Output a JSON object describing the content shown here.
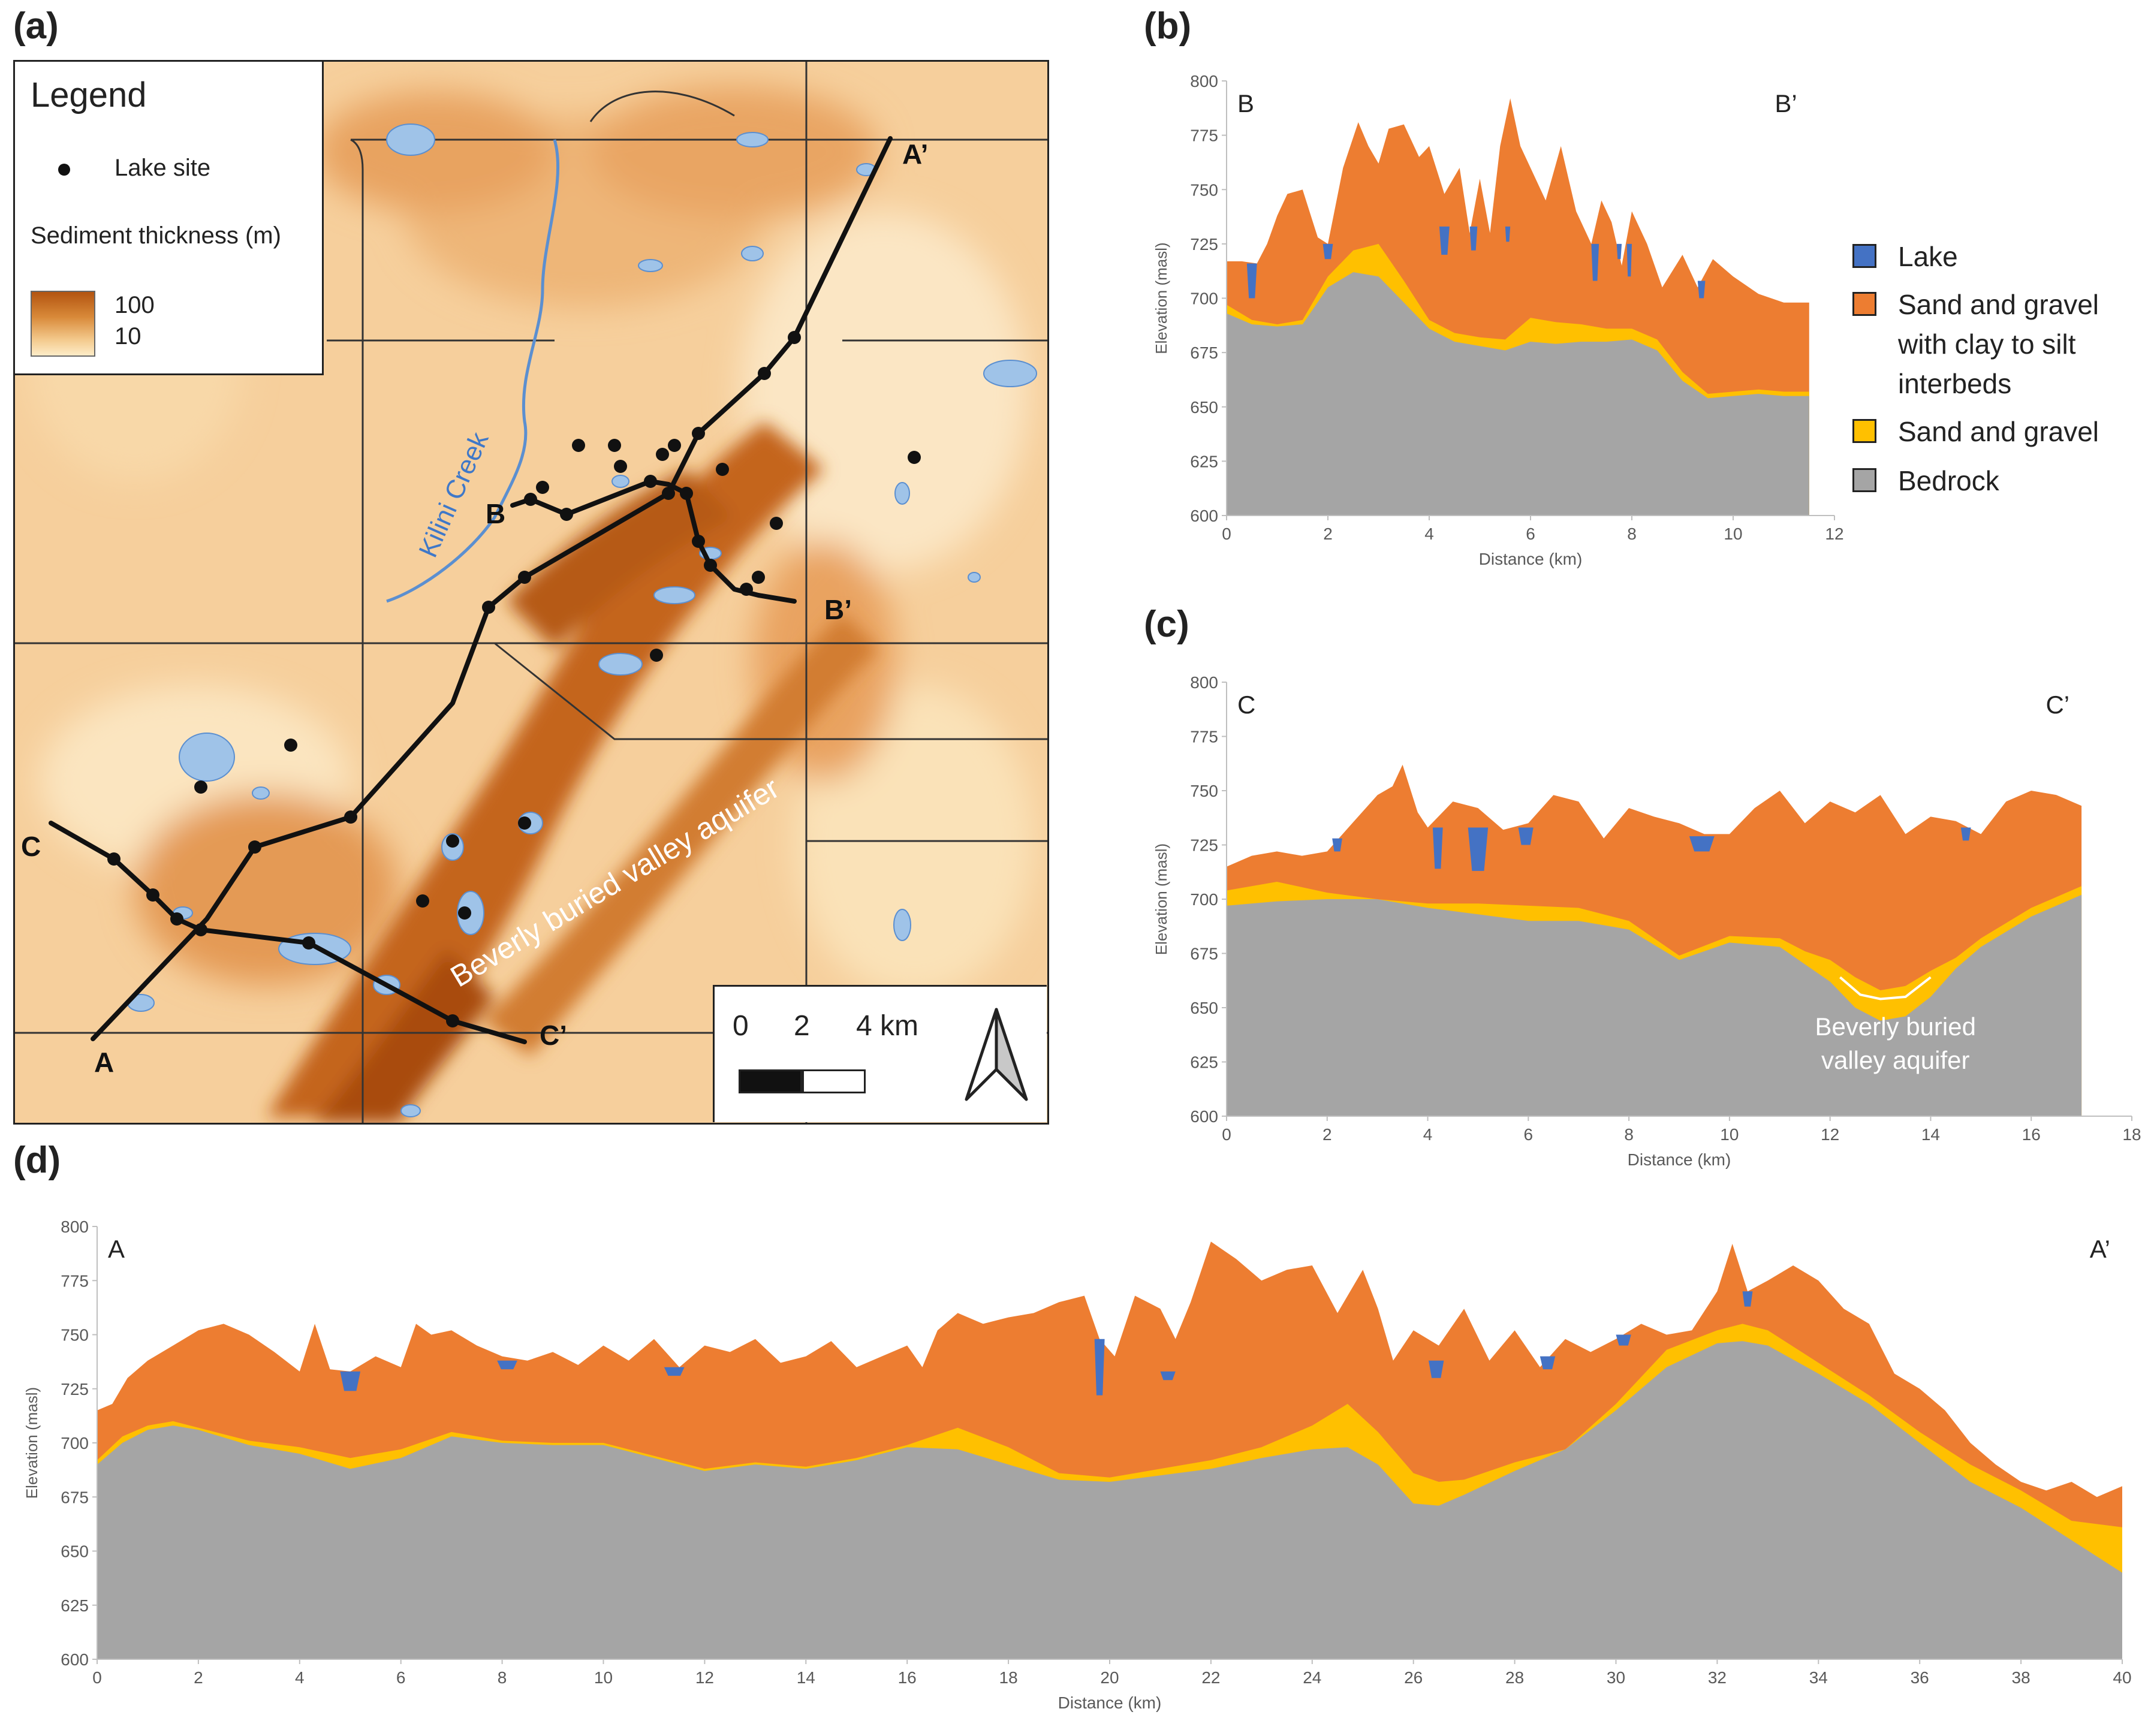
{
  "panels": {
    "a": "(a)",
    "b": "(b)",
    "c": "(c)",
    "d": "(d)"
  },
  "map": {
    "legend": {
      "title": "Legend",
      "lake_site": "Lake site",
      "sediment_thickness": "Sediment thickness (m)",
      "high": "100",
      "low": "10"
    },
    "scale": {
      "ticks": [
        "0",
        "2",
        "4 km"
      ],
      "icon": "north-arrow-icon"
    },
    "labels": {
      "creek": "Kilini Creek",
      "aquifer": "Beverly buried valley aquifer",
      "A": "A",
      "A_prime": "A’",
      "B": "B",
      "B_prime": "B’",
      "C": "C",
      "C_prime": "C’"
    },
    "colors": {
      "high": "#b35410",
      "mid": "#e39a4a",
      "low": "#fcefd2",
      "water": "#9fc3e8",
      "water_edge": "#5b8fd0"
    }
  },
  "chart_legend": {
    "items": [
      {
        "label": "Lake",
        "color": "#4472c4"
      },
      {
        "label": "Sand and gravel with clay to silt interbeds",
        "label_lines": [
          "Sand and gravel",
          "with clay to silt",
          "interbeds"
        ],
        "color": "#ed7d31"
      },
      {
        "label": "Sand and gravel",
        "color": "#ffc000"
      },
      {
        "label": "Bedrock",
        "color": "#a5a5a5"
      }
    ]
  },
  "chart_data": [
    {
      "id": "b",
      "type": "area",
      "title": "",
      "start_label": "B",
      "end_label": "B’",
      "xlabel": "Distance (km)",
      "ylabel": "Elevation (masl)",
      "xlim": [
        0,
        12
      ],
      "ylim": [
        600,
        800
      ],
      "xticks": [
        0,
        2,
        4,
        6,
        8,
        10,
        12
      ],
      "yticks": [
        600,
        625,
        650,
        675,
        700,
        725,
        750,
        775,
        800
      ],
      "x_max": 11.5,
      "series": [
        {
          "name": "Bedrock",
          "x": [
            0,
            0.5,
            1,
            1.5,
            2,
            2.5,
            3,
            3.5,
            4,
            4.5,
            5,
            5.5,
            6,
            6.5,
            7,
            7.5,
            8,
            8.5,
            9,
            9.5,
            10,
            10.5,
            11,
            11.5
          ],
          "values": [
            693,
            688,
            687,
            688,
            705,
            712,
            710,
            698,
            686,
            680,
            678,
            676,
            680,
            679,
            680,
            680,
            681,
            676,
            662,
            654,
            655,
            656,
            655,
            655
          ]
        },
        {
          "name": "Sand and gravel",
          "x": [
            0,
            0.5,
            1,
            1.5,
            2,
            2.5,
            3,
            3.5,
            4,
            4.5,
            5,
            5.5,
            6,
            6.5,
            7,
            7.5,
            8,
            8.5,
            9,
            9.5,
            10,
            10.5,
            11,
            11.5
          ],
          "values": [
            697,
            690,
            688,
            690,
            710,
            722,
            725,
            708,
            690,
            684,
            682,
            681,
            691,
            689,
            688,
            686,
            686,
            681,
            666,
            656,
            657,
            658,
            657,
            657
          ]
        },
        {
          "name": "Sand and gravel with clay to silt interbeds",
          "x": [
            0,
            0.3,
            0.6,
            0.8,
            1,
            1.2,
            1.5,
            1.8,
            2,
            2.3,
            2.6,
            2.8,
            3,
            3.2,
            3.5,
            3.8,
            4,
            4.3,
            4.6,
            4.8,
            5,
            5.2,
            5.4,
            5.6,
            5.8,
            6,
            6.3,
            6.6,
            6.9,
            7.2,
            7.4,
            7.6,
            7.8,
            8,
            8.3,
            8.6,
            9,
            9.3,
            9.6,
            10,
            10.5,
            11,
            11.5
          ],
          "values": [
            717,
            717,
            716,
            725,
            738,
            748,
            750,
            728,
            725,
            760,
            781,
            770,
            762,
            778,
            780,
            765,
            770,
            748,
            760,
            730,
            755,
            730,
            770,
            792,
            770,
            760,
            745,
            770,
            740,
            725,
            745,
            735,
            715,
            740,
            725,
            705,
            720,
            705,
            718,
            710,
            702,
            698,
            698
          ]
        },
        {
          "name": "Lake",
          "segments": [
            [
              0.4,
              0.6,
              716,
              700
            ],
            [
              1.9,
              2.1,
              725,
              718
            ],
            [
              4.2,
              4.4,
              733,
              720
            ],
            [
              4.8,
              4.95,
              733,
              722
            ],
            [
              5.5,
              5.6,
              733,
              726
            ],
            [
              7.2,
              7.35,
              725,
              708
            ],
            [
              7.7,
              7.8,
              725,
              718
            ],
            [
              7.9,
              8.0,
              725,
              710
            ],
            [
              9.3,
              9.45,
              708,
              700
            ]
          ]
        }
      ]
    },
    {
      "id": "c",
      "type": "area",
      "title": "",
      "start_label": "C",
      "end_label": "C’",
      "xlabel": "Distance (km)",
      "ylabel": "Elevation (masl)",
      "xlim": [
        0,
        18
      ],
      "ylim": [
        600,
        800
      ],
      "xticks": [
        0,
        2,
        4,
        6,
        8,
        10,
        12,
        14,
        16,
        18
      ],
      "yticks": [
        600,
        625,
        650,
        675,
        700,
        725,
        750,
        775,
        800
      ],
      "x_max": 17,
      "annotation": "Beverly buried valley aquifer",
      "annotation_lines": [
        "Beverly buried",
        "valley aquifer"
      ],
      "series": [
        {
          "name": "Bedrock",
          "x": [
            0,
            1,
            2,
            3,
            4,
            5,
            6,
            7,
            8,
            9,
            10,
            11,
            11.5,
            12,
            12.5,
            13,
            13.5,
            14,
            14.5,
            15,
            16,
            17
          ],
          "values": [
            697,
            699,
            700,
            700,
            696,
            693,
            690,
            690,
            686,
            672,
            680,
            678,
            670,
            662,
            650,
            644,
            646,
            655,
            668,
            678,
            692,
            702
          ]
        },
        {
          "name": "Sand and gravel",
          "x": [
            0,
            1,
            2,
            3,
            4,
            5,
            6,
            7,
            8,
            9,
            10,
            11,
            11.5,
            12,
            12.5,
            13,
            13.5,
            14,
            14.5,
            15,
            16,
            17
          ],
          "values": [
            704,
            708,
            703,
            700,
            698,
            698,
            697,
            696,
            690,
            674,
            683,
            682,
            676,
            672,
            664,
            658,
            660,
            667,
            673,
            682,
            696,
            706
          ]
        },
        {
          "name": "Sand and gravel with clay to silt interbeds",
          "x": [
            0,
            0.5,
            1,
            1.5,
            2,
            2.5,
            3,
            3.3,
            3.5,
            3.8,
            4,
            4.5,
            5,
            5.5,
            6,
            6.5,
            7,
            7.5,
            8,
            8.5,
            9,
            9.5,
            10,
            10.5,
            11,
            11.5,
            12,
            12.5,
            13,
            13.5,
            14,
            14.5,
            15,
            15.5,
            16,
            16.5,
            17
          ],
          "values": [
            715,
            720,
            722,
            720,
            722,
            735,
            748,
            752,
            762,
            740,
            733,
            745,
            742,
            732,
            735,
            748,
            745,
            728,
            742,
            738,
            735,
            730,
            730,
            742,
            750,
            735,
            745,
            740,
            748,
            730,
            738,
            736,
            730,
            745,
            750,
            748,
            743
          ]
        },
        {
          "name": "Lake",
          "segments": [
            [
              2.1,
              2.3,
              728,
              722
            ],
            [
              4.1,
              4.3,
              733,
              714
            ],
            [
              4.8,
              5.2,
              733,
              713
            ],
            [
              5.8,
              6.1,
              733,
              725
            ],
            [
              9.2,
              9.7,
              729,
              722
            ],
            [
              14.6,
              14.8,
              733,
              727
            ]
          ]
        }
      ]
    },
    {
      "id": "d",
      "type": "area",
      "title": "",
      "start_label": "A",
      "end_label": "A’",
      "xlabel": "Distance (km)",
      "ylabel": "Elevation (masl)",
      "xlim": [
        0,
        40
      ],
      "ylim": [
        600,
        800
      ],
      "xticks": [
        0,
        2,
        4,
        6,
        8,
        10,
        12,
        14,
        16,
        18,
        20,
        22,
        24,
        26,
        28,
        30,
        32,
        34,
        36,
        38,
        40
      ],
      "yticks": [
        600,
        625,
        650,
        675,
        700,
        725,
        750,
        775,
        800
      ],
      "x_max": 40,
      "series": [
        {
          "name": "Bedrock",
          "x": [
            0,
            0.5,
            1,
            1.5,
            2,
            3,
            4,
            5,
            6,
            7,
            8,
            9,
            10,
            11,
            12,
            13,
            14,
            15,
            16,
            17,
            18,
            19,
            20,
            21,
            22,
            23,
            24,
            24.7,
            25.3,
            26,
            26.5,
            27,
            28,
            29,
            30,
            31,
            32,
            32.5,
            33,
            34,
            35,
            36,
            37,
            38,
            39,
            40
          ],
          "values": [
            690,
            700,
            706,
            708,
            706,
            699,
            695,
            688,
            693,
            703,
            700,
            699,
            699,
            693,
            687,
            690,
            688,
            692,
            698,
            697,
            690,
            683,
            682,
            685,
            688,
            693,
            697,
            698,
            690,
            672,
            671,
            676,
            687,
            697,
            715,
            735,
            746,
            747,
            745,
            732,
            718,
            700,
            682,
            670,
            655,
            640
          ]
        },
        {
          "name": "Sand and gravel",
          "x": [
            0,
            0.5,
            1,
            1.5,
            2,
            3,
            4,
            5,
            6,
            7,
            8,
            9,
            10,
            11,
            12,
            13,
            14,
            15,
            16,
            17,
            18,
            19,
            20,
            21,
            22,
            23,
            24,
            24.7,
            25.3,
            26,
            26.5,
            27,
            28,
            29,
            30,
            31,
            32,
            32.5,
            33,
            34,
            35,
            36,
            37,
            38,
            39,
            40
          ],
          "values": [
            692,
            703,
            708,
            710,
            707,
            701,
            698,
            693,
            697,
            705,
            701,
            700,
            700,
            694,
            688,
            691,
            689,
            693,
            699,
            707,
            698,
            686,
            684,
            688,
            692,
            698,
            708,
            718,
            705,
            686,
            682,
            683,
            691,
            697,
            718,
            743,
            752,
            755,
            752,
            737,
            722,
            705,
            690,
            678,
            664,
            661
          ]
        },
        {
          "name": "Sand and gravel with clay to silt interbeds",
          "x": [
            0,
            0.3,
            0.6,
            1,
            1.5,
            2,
            2.5,
            3,
            3.5,
            4,
            4.3,
            4.6,
            5,
            5.5,
            6,
            6.3,
            6.6,
            7,
            7.5,
            8,
            8.5,
            9,
            9.5,
            10,
            10.5,
            11,
            11.5,
            12,
            12.5,
            13,
            13.5,
            14,
            14.5,
            15,
            15.5,
            16,
            16.3,
            16.6,
            17,
            17.5,
            18,
            18.5,
            19,
            19.5,
            19.8,
            20.1,
            20.5,
            21,
            21.3,
            21.6,
            22,
            22.5,
            23,
            23.5,
            24,
            24.5,
            25,
            25.3,
            25.6,
            26,
            26.5,
            27,
            27.5,
            28,
            28.5,
            29,
            29.5,
            30,
            30.5,
            31,
            31.5,
            32,
            32.3,
            32.6,
            33,
            33.5,
            34,
            34.5,
            35,
            35.5,
            36,
            36.5,
            37,
            37.5,
            38,
            38.5,
            39,
            39.5,
            40
          ],
          "values": [
            715,
            718,
            730,
            738,
            745,
            752,
            755,
            750,
            742,
            733,
            755,
            734,
            733,
            740,
            735,
            755,
            750,
            752,
            745,
            740,
            738,
            742,
            736,
            745,
            738,
            748,
            735,
            745,
            742,
            748,
            737,
            740,
            747,
            735,
            740,
            745,
            735,
            752,
            760,
            755,
            758,
            760,
            765,
            768,
            748,
            740,
            768,
            762,
            748,
            765,
            793,
            785,
            775,
            780,
            782,
            760,
            780,
            762,
            738,
            752,
            745,
            762,
            738,
            752,
            735,
            748,
            742,
            748,
            755,
            750,
            752,
            770,
            792,
            770,
            775,
            782,
            775,
            762,
            755,
            732,
            725,
            715,
            700,
            690,
            682,
            678,
            682,
            675,
            680
          ]
        },
        {
          "name": "Lake",
          "segments": [
            [
              4.8,
              5.2,
              733,
              724
            ],
            [
              7.9,
              8.3,
              738,
              734
            ],
            [
              11.2,
              11.6,
              735,
              731
            ],
            [
              19.7,
              19.9,
              748,
              722
            ],
            [
              21.0,
              21.3,
              733,
              729
            ],
            [
              26.3,
              26.6,
              738,
              730
            ],
            [
              28.5,
              28.8,
              740,
              734
            ],
            [
              30.0,
              30.3,
              750,
              745
            ],
            [
              32.5,
              32.7,
              770,
              763
            ]
          ]
        }
      ]
    }
  ]
}
